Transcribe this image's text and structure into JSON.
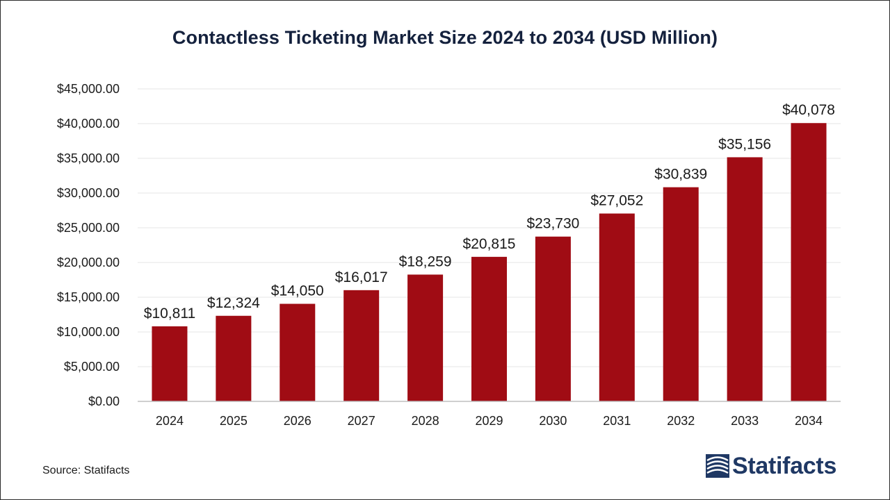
{
  "chart_data": {
    "type": "bar",
    "title": "Contactless Ticketing Market Size 2024 to 2034 (USD Million)",
    "xlabel": "",
    "ylabel": "",
    "categories": [
      "2024",
      "2025",
      "2026",
      "2027",
      "2028",
      "2029",
      "2030",
      "2031",
      "2032",
      "2033",
      "2034"
    ],
    "values": [
      10811,
      12324,
      14050,
      16017,
      18259,
      20815,
      23730,
      27052,
      30839,
      35156,
      40078
    ],
    "data_labels": [
      "$10,811",
      "$12,324",
      "$14,050",
      "$16,017",
      "$18,259",
      "$20,815",
      "$23,730",
      "$27,052",
      "$30,839",
      "$35,156",
      "$40,078"
    ],
    "ylim": [
      0,
      45000
    ],
    "yticks": [
      0,
      5000,
      10000,
      15000,
      20000,
      25000,
      30000,
      35000,
      40000,
      45000
    ],
    "ytick_labels": [
      "$0.00",
      "$5,000.00",
      "$10,000.00",
      "$15,000.00",
      "$20,000.00",
      "$25,000.00",
      "$30,000.00",
      "$35,000.00",
      "$40,000.00",
      "$45,000.00"
    ],
    "grid": true,
    "legend": "none",
    "bar_color": "#a00c14"
  },
  "footer": {
    "source": "Source: Statifacts",
    "logo_text": "Statifacts",
    "logo_color": "#1f3864"
  }
}
